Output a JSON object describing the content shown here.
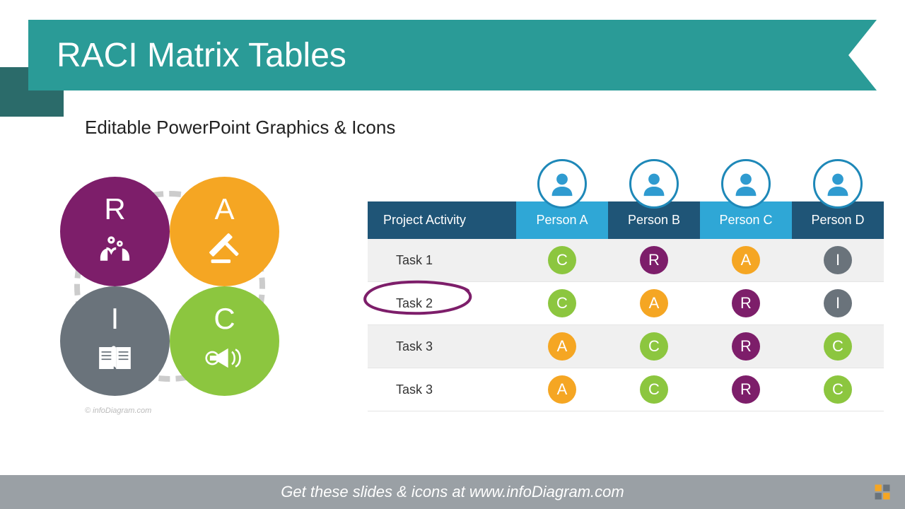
{
  "colors": {
    "R": "#7d1e6a",
    "A": "#f5a623",
    "I": "#6a737b",
    "C": "#8cc63f",
    "ribbon": "#2a9b97",
    "ribbonBack": "#2b6b6a",
    "headerDark": "#1f5577",
    "headerLight": "#2fa7d6",
    "personFill": "#2f9bd0",
    "personRing": "#1e88b8",
    "footer": "#9aa0a5",
    "mark": "#7d1e6a"
  },
  "title": "RACI Matrix Tables",
  "subtitle": "Editable PowerPoint Graphics & Icons",
  "raci": [
    {
      "letter": "R",
      "color": "#7d1e6a",
      "icon": "hands-gears"
    },
    {
      "letter": "A",
      "color": "#f5a623",
      "icon": "gavel"
    },
    {
      "letter": "I",
      "color": "#6a737b",
      "icon": "book"
    },
    {
      "letter": "C",
      "color": "#8cc63f",
      "icon": "megaphone"
    }
  ],
  "table": {
    "activityHeader": "Project Activity",
    "persons": [
      "Person A",
      "Person B",
      "Person C",
      "Person D"
    ],
    "rows": [
      {
        "task": "Task 1",
        "cells": [
          "C",
          "R",
          "A",
          "I"
        ],
        "marked": false
      },
      {
        "task": "Task 2",
        "cells": [
          "C",
          "A",
          "R",
          "I"
        ],
        "marked": true
      },
      {
        "task": "Task 3",
        "cells": [
          "A",
          "C",
          "R",
          "C"
        ],
        "marked": false
      },
      {
        "task": "Task 3",
        "cells": [
          "A",
          "C",
          "R",
          "C"
        ],
        "marked": false
      }
    ]
  },
  "footer": "Get these slides & icons at www.infoDiagram.com",
  "watermark": "© infoDiagram.com"
}
